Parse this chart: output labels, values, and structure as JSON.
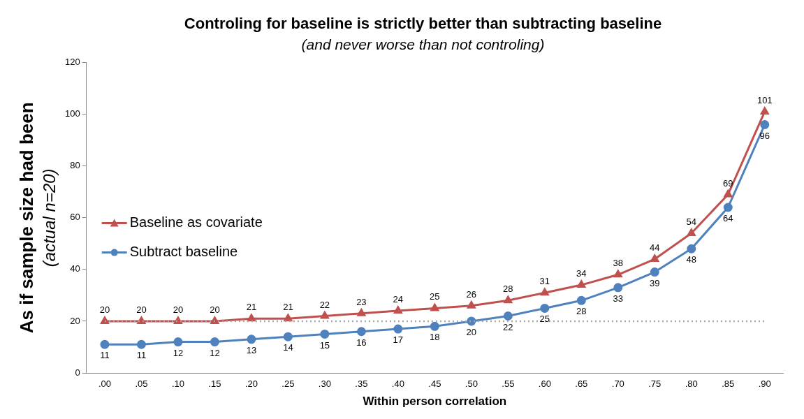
{
  "chart_data": {
    "type": "line",
    "title": "Controling for baseline is strictly better than subtracting baseline",
    "subtitle": "(and never worse than not controling)",
    "xlabel": "Within person correlation",
    "ylabel": "As if sample size had been\n(actual n=20)",
    "categories": [
      ".00",
      ".05",
      ".10",
      ".15",
      ".20",
      ".25",
      ".30",
      ".35",
      ".40",
      ".45",
      ".50",
      ".55",
      ".60",
      ".65",
      ".70",
      ".75",
      ".80",
      ".85",
      ".90"
    ],
    "series": [
      {
        "name": "Baseline as covariate",
        "color": "#c0504d",
        "marker": "triangle",
        "values": [
          20,
          20,
          20,
          20,
          21,
          21,
          22,
          23,
          24,
          25,
          26,
          28,
          31,
          34,
          38,
          44,
          54,
          69,
          101
        ]
      },
      {
        "name": "Subtract baseline",
        "color": "#4f81bd",
        "marker": "circle",
        "values": [
          11,
          11,
          12,
          12,
          13,
          14,
          15,
          16,
          17,
          18,
          20,
          22,
          25,
          28,
          33,
          39,
          48,
          64,
          96
        ]
      }
    ],
    "ylim": [
      0,
      120
    ],
    "yticks": [
      0,
      20,
      40,
      60,
      80,
      100,
      120
    ],
    "grid": false,
    "legend": "left",
    "data_labels": true,
    "ref_lines": [
      {
        "axis": "y",
        "value": 20,
        "color": "#a6a6a6",
        "line_style": "dotted"
      }
    ]
  }
}
